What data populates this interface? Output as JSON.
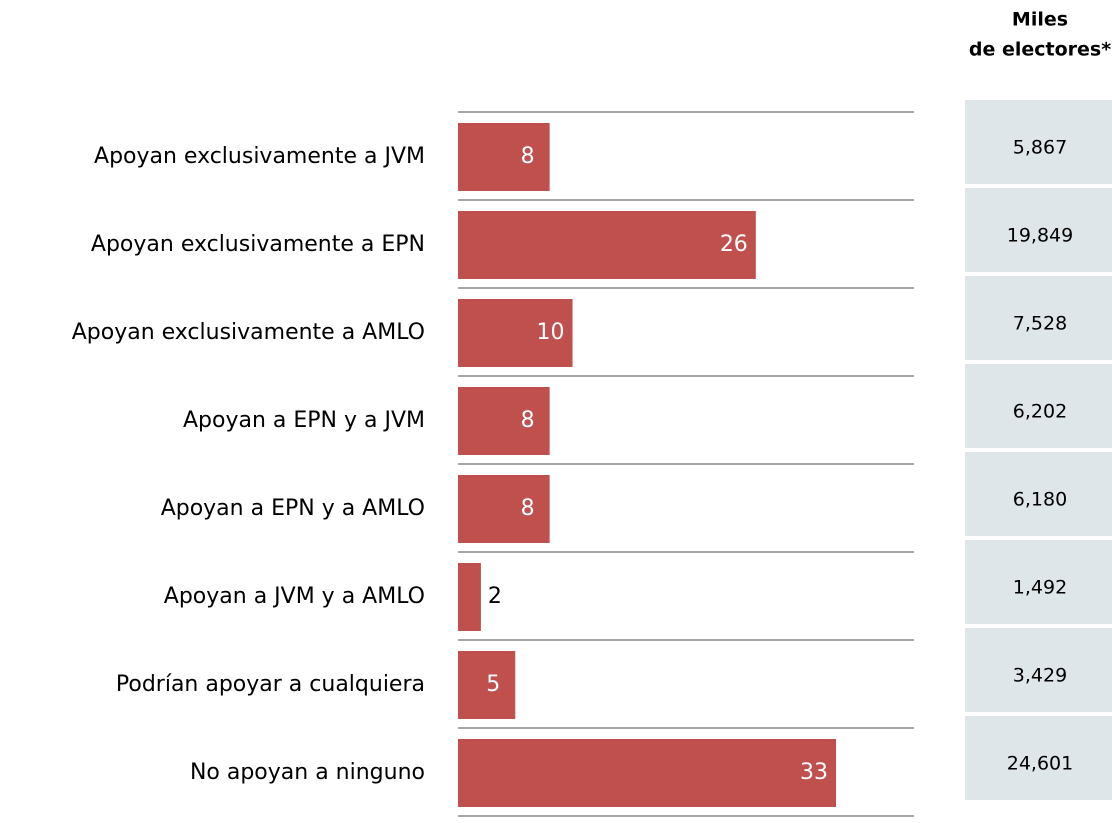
{
  "chart_data": {
    "type": "bar",
    "orientation": "horizontal",
    "categories": [
      "Apoyan exclusivamente a JVM",
      "Apoyan exclusivamente a EPN",
      "Apoyan exclusivamente a AMLO",
      "Apoyan a EPN y a JVM",
      "Apoyan a EPN y a AMLO",
      "Apoyan a JVM y a AMLO",
      "Podrían apoyar a cualquiera",
      "No apoyan a ninguno"
    ],
    "values": [
      8,
      26,
      10,
      8,
      8,
      2,
      5,
      33
    ],
    "color": "#c0504d",
    "table_header": [
      "Miles",
      "de electores*"
    ],
    "table_values": [
      "5,867",
      "19,849",
      "7,528",
      "6,202",
      "6,180",
      "1,492",
      "3,429",
      "24,601"
    ]
  }
}
